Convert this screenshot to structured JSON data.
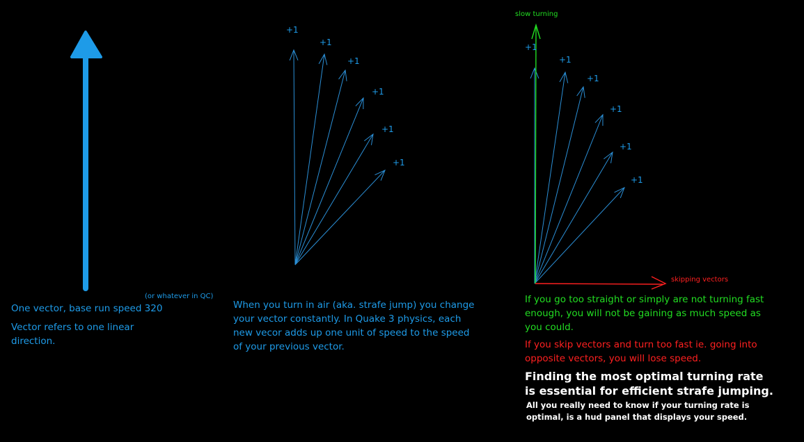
{
  "colors": {
    "blue": "#1e9be8",
    "thin_blue": "#2b8fd6",
    "green": "#22dd22",
    "red": "#ff2020",
    "white": "#ffffff",
    "background": "#000000"
  },
  "panel1": {
    "note": "(or whatever in QC)",
    "caption_line1": "One vector, base run speed 320",
    "caption_line2": "Vector refers to one linear direction."
  },
  "panel2": {
    "increment_label": "+1",
    "caption": "When you turn in air (aka. strafe jump) you change your vector constantly. In Quake 3 physics, each new vecor adds up one unit of speed to the speed of your previous vector."
  },
  "panel3": {
    "slow_label": "slow turning",
    "skip_label": "skipping vectors",
    "increment_label": "+1",
    "green_text": "If you go too straight or simply are not turning fast enough, you will not be gaining as much speed as you could.",
    "red_text": "If you skip vectors and turn too fast ie. going into opposite vectors, you will lose speed.",
    "bold_text": "Finding the most optimal turning rate is essential for efficient strafe jumping.",
    "small_text": "All you really need to know if your turning rate is optimal, is a hud panel that displays your speed."
  }
}
